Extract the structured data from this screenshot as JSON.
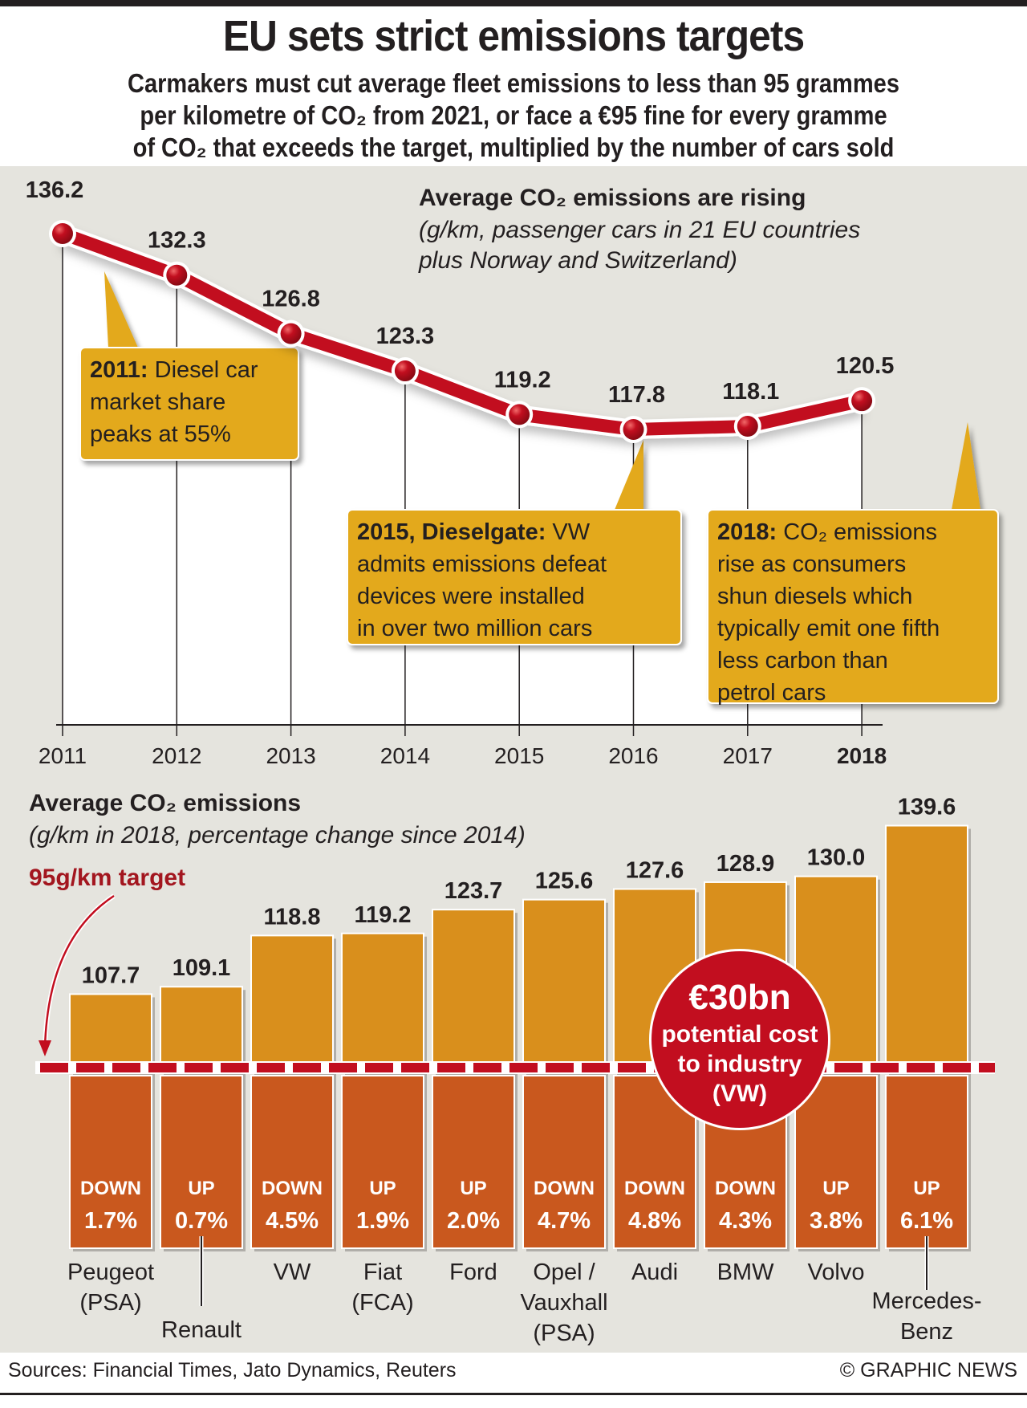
{
  "title": "EU sets strict emissions targets",
  "subtitle_lines": [
    "Carmakers must cut average fleet emissions to less than 95 grammes",
    "per kilometre of CO₂ from 2021, or face a €95 fine for every gramme",
    "of CO₂ that exceeds the target, multiplied by the number of cars sold"
  ],
  "footer": {
    "sources": "Sources: Financial Times, Jato Dynamics, Reuters",
    "copyright": "© GRAPHIC NEWS"
  },
  "colors": {
    "line_red": "#c20e1f",
    "callout_gold": "#e3a91f",
    "bar_upper": "#d98f1c",
    "bar_lower": "#c9581e",
    "target_red": "#c20e1f",
    "panel_bg": "#e5e4de"
  },
  "chart_data": [
    {
      "type": "line",
      "title": "Average CO₂ emissions are rising",
      "subtitle_lines": [
        "(g/km, passenger cars in 21 EU countries",
        "plus Norway and Switzerland)"
      ],
      "x": [
        "2011",
        "2012",
        "2013",
        "2014",
        "2015",
        "2016",
        "2017",
        "2018"
      ],
      "highlight_x": "2018",
      "values": [
        136.2,
        132.3,
        126.8,
        123.3,
        119.2,
        117.8,
        118.1,
        120.5
      ],
      "value_labels": [
        "136.2",
        "132.3",
        "126.8",
        "123.3",
        "119.2",
        "117.8",
        "118.1",
        "120.5"
      ],
      "ylabel": "g/km",
      "annotations": [
        {
          "x": "2011",
          "bold": "2011:",
          "lines": [
            "Diesel car",
            "market share",
            "peaks at 55%"
          ]
        },
        {
          "x": "2015",
          "bold": "2015, Dieselgate:",
          "lines": [
            "VW",
            "admits emissions defeat",
            "devices were installed",
            "in over two million cars"
          ]
        },
        {
          "x": "2018",
          "bold": "2018:",
          "lines": [
            "CO₂ emissions",
            "rise as consumers",
            "shun diesels which",
            "typically emit one fifth",
            "less carbon than",
            "petrol cars"
          ]
        }
      ]
    },
    {
      "type": "bar",
      "title": "Average CO₂ emissions",
      "subtitle": "(g/km in 2018, percentage change since 2014)",
      "target_label": "95g/km target",
      "target_value": 95,
      "categories": [
        "Peugeot (PSA)",
        "Renault",
        "VW",
        "Fiat (FCA)",
        "Ford",
        "Opel / Vauxhall (PSA)",
        "Audi",
        "BMW",
        "Volvo",
        "Mercedes-Benz"
      ],
      "category_label_lines": [
        [
          "Peugeot",
          "(PSA)"
        ],
        [
          "Renault"
        ],
        [
          "VW"
        ],
        [
          "Fiat",
          "(FCA)"
        ],
        [
          "Ford"
        ],
        [
          "Opel /",
          "Vauxhall",
          "(PSA)"
        ],
        [
          "Audi"
        ],
        [
          "BMW"
        ],
        [
          "Volvo"
        ],
        [
          "Mercedes-",
          "Benz"
        ]
      ],
      "values": [
        107.7,
        109.1,
        118.8,
        119.2,
        123.7,
        125.6,
        127.6,
        128.9,
        130.0,
        139.6
      ],
      "value_labels": [
        "107.7",
        "109.1",
        "118.8",
        "119.2",
        "123.7",
        "125.6",
        "127.6",
        "128.9",
        "130.0",
        "139.6"
      ],
      "change_direction": [
        "DOWN",
        "UP",
        "DOWN",
        "UP",
        "UP",
        "DOWN",
        "DOWN",
        "DOWN",
        "UP",
        "UP"
      ],
      "change_pct": [
        "1.7%",
        "0.7%",
        "4.5%",
        "1.9%",
        "2.0%",
        "4.7%",
        "4.8%",
        "4.3%",
        "3.8%",
        "6.1%"
      ],
      "callout": {
        "amount": "€30bn",
        "lines": [
          "potential cost",
          "to industry",
          "(VW)"
        ]
      }
    }
  ]
}
